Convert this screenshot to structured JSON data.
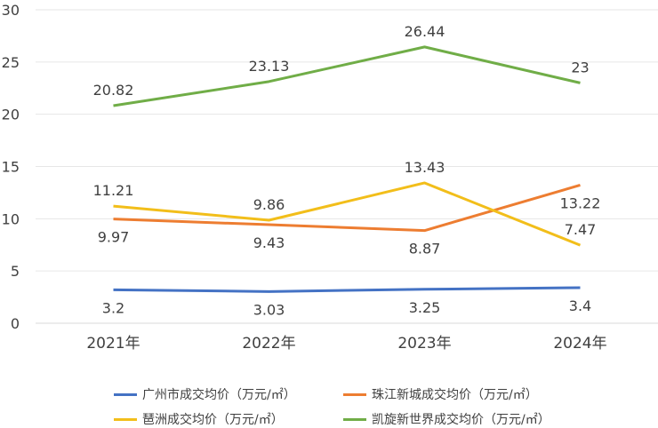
{
  "chart_data": {
    "type": "line",
    "title": "",
    "xlabel": "",
    "ylabel": "",
    "categories": [
      "2021年",
      "2022年",
      "2023年",
      "2024年"
    ],
    "ylim": [
      0,
      30
    ],
    "yticks": [
      "0",
      "5",
      "10",
      "15",
      "20",
      "25",
      "30"
    ],
    "grid": true,
    "legend_position": "bottom",
    "series": [
      {
        "name": "广州市成交均价（万元/㎡）",
        "color": "#4472C4",
        "values": [
          3.2,
          3.03,
          3.25,
          3.4
        ],
        "labels": [
          "3.2",
          "3.03",
          "3.25",
          "3.4"
        ],
        "label_pos": "below"
      },
      {
        "name": "珠江新城成交均价（万元/㎡）",
        "color": "#ED7D31",
        "values": [
          9.97,
          9.43,
          8.87,
          13.22
        ],
        "labels": [
          "9.97",
          "9.43",
          "8.87",
          "13.22"
        ],
        "label_pos": "below"
      },
      {
        "name": "琶洲成交均价（万元/㎡）",
        "color": "#F2BE1A",
        "values": [
          11.21,
          9.86,
          13.43,
          7.47
        ],
        "labels": [
          "11.21",
          "9.86",
          "13.43",
          "7.47"
        ],
        "label_pos": "above"
      },
      {
        "name": "凯旋新世界成交均价（万元/㎡）",
        "color": "#70AD47",
        "values": [
          20.82,
          23.13,
          26.44,
          23
        ],
        "labels": [
          "20.82",
          "23.13",
          "26.44",
          "23"
        ],
        "label_pos": "above"
      }
    ]
  }
}
